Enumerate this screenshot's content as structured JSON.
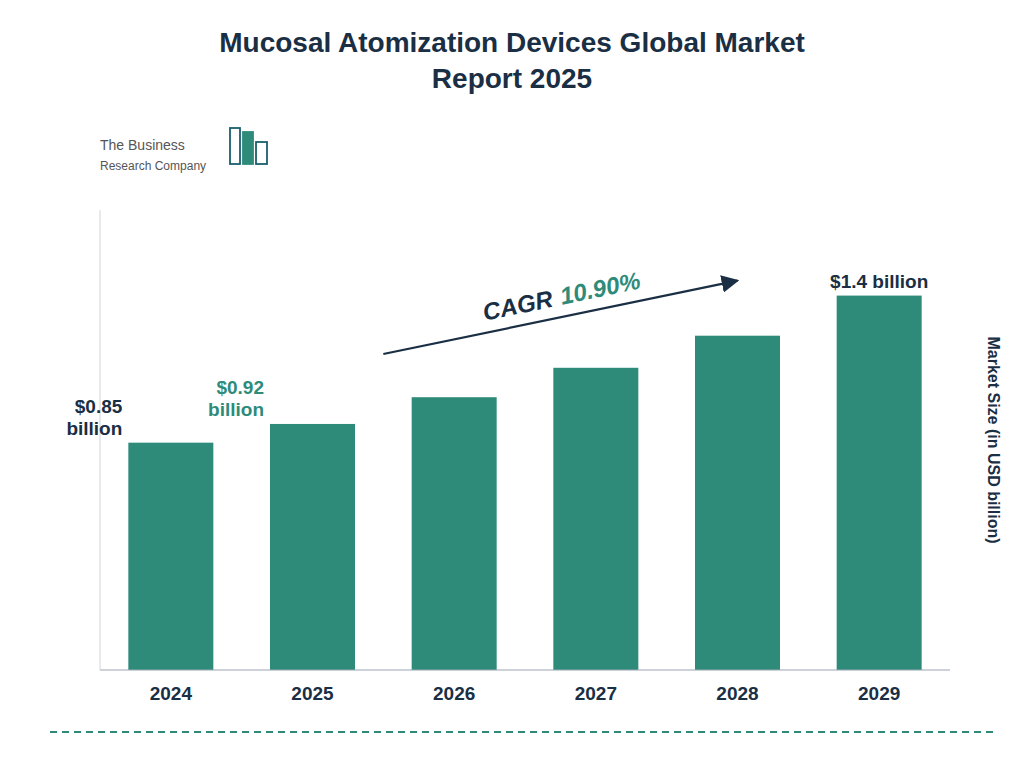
{
  "chart_data": {
    "type": "bar",
    "title": "Mucosal Atomization Devices Global Market\nReport 2025",
    "text_color": "#1a2e44",
    "background_color": "#ffffff",
    "categories": [
      "2024",
      "2025",
      "2026",
      "2027",
      "2028",
      "2029"
    ],
    "values": [
      0.85,
      0.92,
      1.02,
      1.13,
      1.25,
      1.4
    ],
    "color": "#2E8B7A",
    "ylabel": "Market Size (in USD billion)",
    "ylim": [
      0,
      1.72
    ],
    "tick_labels": "x",
    "grid": false,
    "annotations": [
      {
        "category": "2024",
        "text": "$0.85\nbillion",
        "color": "#1a2e44"
      },
      {
        "category": "2025",
        "text": "$0.92\nbillion",
        "color": "#2E8B7A"
      },
      {
        "category": "2029",
        "text": "$1.4 billion",
        "color": "#1a2e44"
      }
    ],
    "cagr": {
      "label": "CAGR",
      "text": "10.90%",
      "label_color": "#1a2e44",
      "color": "#2E8B7A",
      "arrow_color": "#1a2e44"
    },
    "logo": {
      "text": [
        "The Business",
        "Research Company"
      ],
      "color": "#555555",
      "outline_color": "#1a5f6e",
      "fill_color": "#2E8B7A"
    },
    "border_color": "#2E8B7A"
  }
}
